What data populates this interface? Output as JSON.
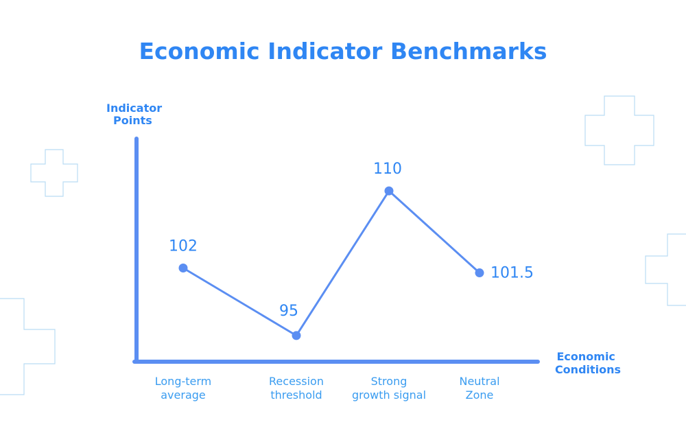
{
  "chart_data": {
    "type": "line",
    "title": "Economic Indicator Benchmarks",
    "ylabel": [
      "Indicator",
      "Points"
    ],
    "xlabel": [
      "Economic",
      "Conditions"
    ],
    "categories": [
      [
        "Long-term",
        "average"
      ],
      [
        "Recession",
        "threshold"
      ],
      [
        "Strong",
        "growth signal"
      ],
      [
        "Neutral",
        "Zone"
      ]
    ],
    "values": [
      102,
      95,
      110,
      101.5
    ],
    "value_labels": [
      "102",
      "95",
      "110",
      "101.5"
    ],
    "ylim": [
      92,
      113
    ],
    "grid": false,
    "colors": {
      "title": "#2f86f3",
      "axis": "#5b8ef2",
      "line": "#5b8ef2",
      "point": "#5b8ef2",
      "labels": "#3a9cf0",
      "decoration": "#b9dcf3"
    },
    "decoration_icons": [
      "plus-shape-icon",
      "plus-shape-icon",
      "plus-shape-icon",
      "plus-shape-icon"
    ]
  }
}
